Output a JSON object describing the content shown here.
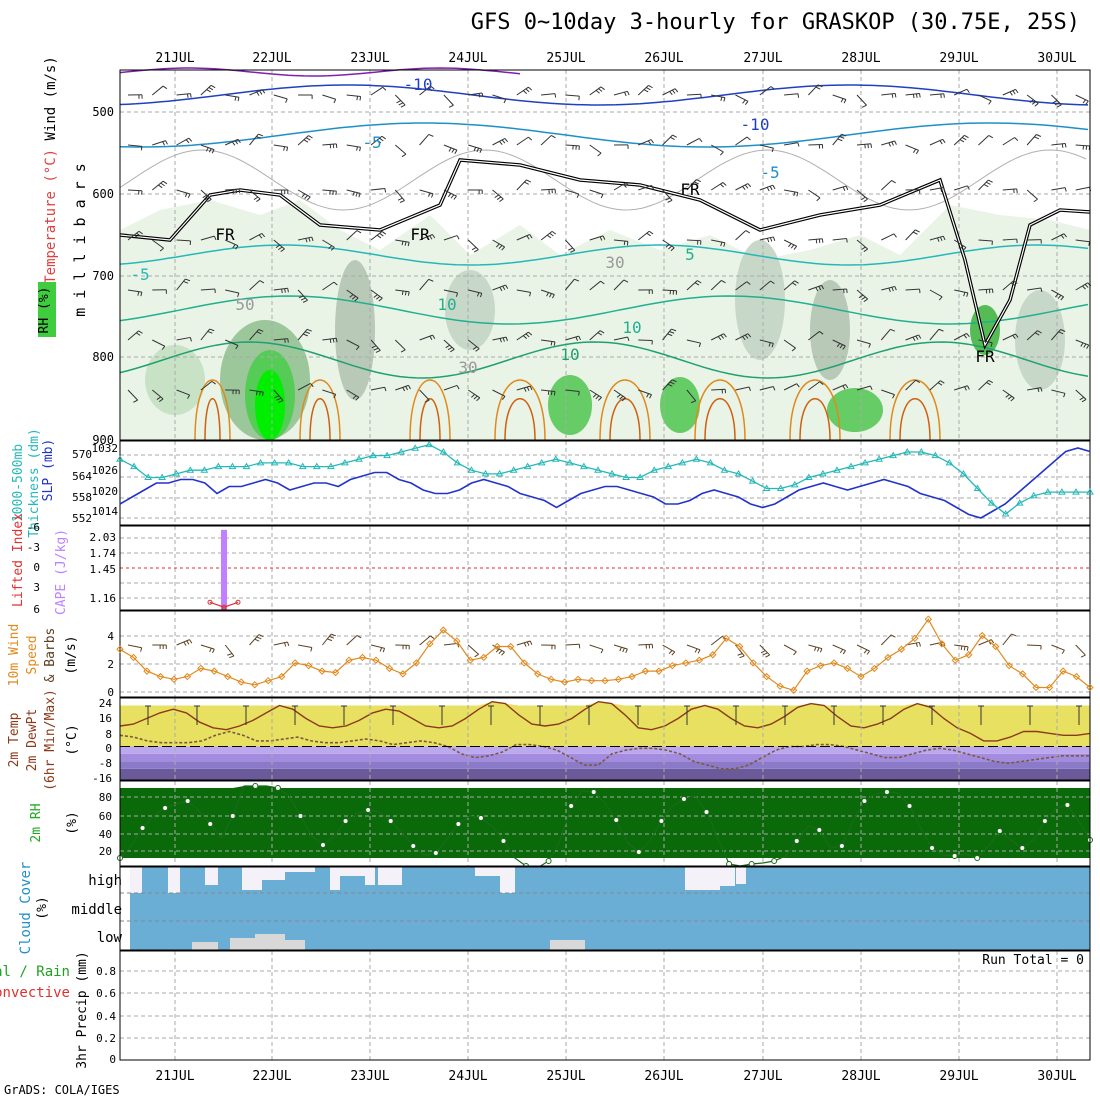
{
  "title": "GFS 0~10day 3-hourly for GRASKOP (30.75E, 25S)",
  "credit": "GrADS: COLA/IGES",
  "run_total_label": "Run Total = 0",
  "colors": {
    "rh_fill": "#2e8b2e",
    "temp_warm": "#e08a1e",
    "temp_cool": "#1e90c8",
    "wind_cyan": "#26b8b8",
    "slp_blue": "#2233cc",
    "cape_purple": "#c080ff",
    "lifted_red": "#e03030",
    "cloud_blue": "#6aaed6",
    "cloud_white": "#f4f2f8",
    "cloud_grey": "#d8d8d8"
  },
  "chart_data": [
    {
      "panel": "upper_air",
      "type": "contour",
      "ylabel_parts": [
        "RH (%)",
        "Temperature (°C)",
        "Wind (m/s)"
      ],
      "y_unit": "m i l l i b a r s",
      "yticks": [
        "500",
        "600",
        "700",
        "800",
        "900"
      ],
      "ylim": [
        450,
        900
      ],
      "x_categories": [
        "21JUL",
        "22JUL",
        "23JUL",
        "24JUL",
        "25JUL",
        "26JUL",
        "27JUL",
        "28JUL",
        "29JUL",
        "30JUL"
      ],
      "contour_labels": [
        "-10",
        "-10",
        "-5",
        "-5",
        "FR",
        "FR",
        "FR",
        "FR",
        "-5",
        "5",
        "10",
        "10",
        "10",
        "30",
        "50",
        "30"
      ]
    },
    {
      "panel": "thickness_slp",
      "type": "line",
      "ylabel_parts": [
        "1000-500mb",
        "Thickness (dm)",
        "SLP (mb)"
      ],
      "left_ticks": [
        "570",
        "564",
        "558",
        "552"
      ],
      "right_ticks": [
        "1032",
        "1026",
        "1020",
        "1014"
      ],
      "series": [
        {
          "name": "SLP (mb)",
          "values": [
            1016,
            1018,
            1020,
            1022,
            1022,
            1023,
            1023,
            1022,
            1019,
            1021,
            1021,
            1022,
            1023,
            1022,
            1020,
            1021,
            1022,
            1022,
            1021,
            1023,
            1024,
            1025,
            1025,
            1023,
            1022,
            1020,
            1019,
            1019,
            1020,
            1022,
            1023,
            1022,
            1021,
            1019,
            1018,
            1017,
            1015,
            1017,
            1019,
            1020,
            1021,
            1021,
            1020,
            1019,
            1018,
            1016,
            1016,
            1017,
            1019,
            1020,
            1019,
            1018,
            1016,
            1015,
            1016,
            1018,
            1020,
            1021,
            1022,
            1021,
            1020,
            1021,
            1022,
            1023,
            1022,
            1021,
            1019,
            1018,
            1017,
            1015,
            1013,
            1012,
            1014,
            1016,
            1019,
            1022,
            1025,
            1028,
            1031,
            1032,
            1031
          ]
        },
        {
          "name": "Thickness (dm)",
          "values": [
            568,
            566,
            563,
            563,
            564,
            565,
            565,
            566,
            566,
            566,
            567,
            567,
            567,
            566,
            566,
            566,
            567,
            568,
            569,
            569,
            570,
            571,
            572,
            570,
            567,
            565,
            564,
            564,
            565,
            566,
            567,
            568,
            567,
            566,
            565,
            564,
            563,
            563,
            565,
            566,
            567,
            568,
            567,
            565,
            564,
            562,
            560,
            560,
            561,
            563,
            564,
            565,
            566,
            567,
            568,
            569,
            570,
            570,
            569,
            567,
            564,
            560,
            556,
            553,
            556,
            558,
            559,
            559,
            559,
            559
          ]
        }
      ]
    },
    {
      "panel": "instability",
      "type": "bar",
      "ylabel_parts": [
        "Lifted Index",
        "CAPE (J/kg)"
      ],
      "left_ticks": [
        "-6",
        "-3",
        "0",
        "3",
        "6"
      ],
      "right_ticks": [
        "2.03",
        "1.74",
        "1.45",
        "1.16"
      ],
      "series": [
        {
          "name": "CAPE (J/kg)",
          "x": [
            "21JUL 12Z"
          ],
          "values": [
            2.03
          ]
        },
        {
          "name": "Lifted Index",
          "x": [
            "21JUL 09Z",
            "21JUL 12Z",
            "21JUL 15Z"
          ],
          "values": [
            4.9,
            5.6,
            4.9
          ]
        }
      ]
    },
    {
      "panel": "surface_wind",
      "type": "line",
      "ylabel_parts": [
        "10m Wind",
        "Speed",
        "& Barbs",
        "(m/s)"
      ],
      "yticks": [
        "4",
        "2",
        "0"
      ],
      "ylim": [
        0,
        6
      ],
      "series": [
        {
          "name": "Speed",
          "values": [
            3.2,
            2.6,
            1.6,
            1.2,
            1.0,
            1.2,
            1.8,
            1.6,
            1.2,
            0.8,
            0.6,
            0.9,
            1.2,
            2.2,
            2.0,
            1.6,
            1.5,
            2.4,
            2.6,
            2.4,
            1.8,
            1.4,
            2.2,
            3.6,
            4.6,
            3.8,
            2.4,
            2.6,
            3.4,
            3.4,
            2.2,
            1.4,
            1.0,
            0.8,
            1.0,
            0.9,
            0.9,
            1.0,
            1.2,
            1.6,
            1.6,
            2.0,
            2.2,
            2.4,
            2.8,
            4.0,
            3.4,
            2.2,
            1.2,
            0.5,
            0.2,
            1.6,
            2.0,
            2.2,
            1.8,
            1.2,
            1.8,
            2.6,
            3.2,
            4.0,
            5.4,
            3.6,
            2.4,
            2.8,
            4.2,
            3.4,
            2.0,
            1.4,
            0.4,
            0.4,
            1.6,
            1.2,
            0.4
          ]
        }
      ]
    },
    {
      "panel": "surface_temp",
      "type": "area",
      "ylabel_parts": [
        "2m Temp",
        "2m DewPt",
        "(6hr Min/Max)",
        "(°C)"
      ],
      "yticks": [
        "24",
        "16",
        "8",
        "0",
        "-8",
        "-16"
      ],
      "ylim": [
        -18,
        26
      ],
      "series": [
        {
          "name": "2m Temp",
          "values": [
            11,
            12,
            15,
            18,
            20,
            18,
            13,
            10,
            9,
            11,
            14,
            18,
            22,
            20,
            15,
            11,
            10,
            11,
            14,
            18,
            20,
            19,
            15,
            11,
            10,
            11,
            15,
            20,
            24,
            23,
            17,
            12,
            11,
            12,
            15,
            20,
            24,
            23,
            17,
            10,
            9,
            11,
            15,
            20,
            22,
            20,
            15,
            11,
            10,
            12,
            16,
            21,
            23,
            22,
            16,
            11,
            10,
            12,
            15,
            20,
            23,
            21,
            15,
            10,
            7,
            3,
            3,
            5,
            8,
            8,
            7,
            6,
            6,
            7
          ]
        },
        {
          "name": "2m DewPt",
          "values": [
            6,
            5,
            3,
            2,
            2,
            2,
            3,
            6,
            8,
            6,
            3,
            3,
            4,
            5,
            3,
            2,
            2,
            3,
            4,
            3,
            1,
            2,
            3,
            2,
            0,
            -4,
            -6,
            -5,
            -3,
            1,
            1,
            0,
            -2,
            -6,
            -10,
            -10,
            -4,
            -2,
            -1,
            -1,
            -2,
            -4,
            -8,
            -10,
            -12,
            -12,
            -10,
            -6,
            -2,
            0,
            0,
            1,
            1,
            0,
            -2,
            -4,
            -6,
            -6,
            -4,
            -2,
            -1,
            -2,
            -4,
            -6,
            -8,
            -9,
            -8,
            -7,
            -6,
            -5,
            -5,
            -5
          ]
        }
      ]
    },
    {
      "panel": "surface_rh",
      "type": "area",
      "ylabel_parts": [
        "2m RH",
        "(%)"
      ],
      "yticks": [
        "80",
        "60",
        "40",
        "20"
      ],
      "ylim": [
        10,
        95
      ],
      "series": [
        {
          "name": "2m RH",
          "values": [
            18,
            30,
            48,
            60,
            68,
            72,
            75,
            65,
            52,
            38,
            60,
            90,
            90,
            90,
            88,
            80,
            60,
            40,
            31,
            40,
            55,
            62,
            66,
            64,
            55,
            43,
            30,
            21,
            23,
            37,
            52,
            60,
            58,
            50,
            35,
            18,
            10,
            8,
            15,
            35,
            70,
            85,
            84,
            73,
            56,
            33,
            24,
            35,
            55,
            70,
            77,
            80,
            64,
            38,
            12,
            10,
            12,
            13,
            15,
            20,
            35,
            50,
            46,
            28,
            30,
            55,
            75,
            82,
            84,
            83,
            70,
            48,
            28,
            21,
            20,
            22,
            18,
            30,
            45,
            36,
            28,
            36,
            55,
            68,
            71,
            55,
            36
          ]
        }
      ]
    },
    {
      "panel": "cloud_cover",
      "type": "bar",
      "ylabel_parts": [
        "Cloud Cover",
        "(%)"
      ],
      "y_categories": [
        "high",
        "middle",
        "low"
      ]
    },
    {
      "panel": "precip",
      "type": "bar",
      "ylabel_parts": [
        "Total / Rain",
        "Convective",
        "3hr Precip (mm)"
      ],
      "yticks": [
        "0.8",
        "0.6",
        "0.4",
        "0.2",
        "0"
      ],
      "ylim": [
        0,
        0.9
      ],
      "series": [
        {
          "name": "Total / Rain",
          "values": []
        },
        {
          "name": "Convective",
          "values": []
        }
      ]
    }
  ]
}
